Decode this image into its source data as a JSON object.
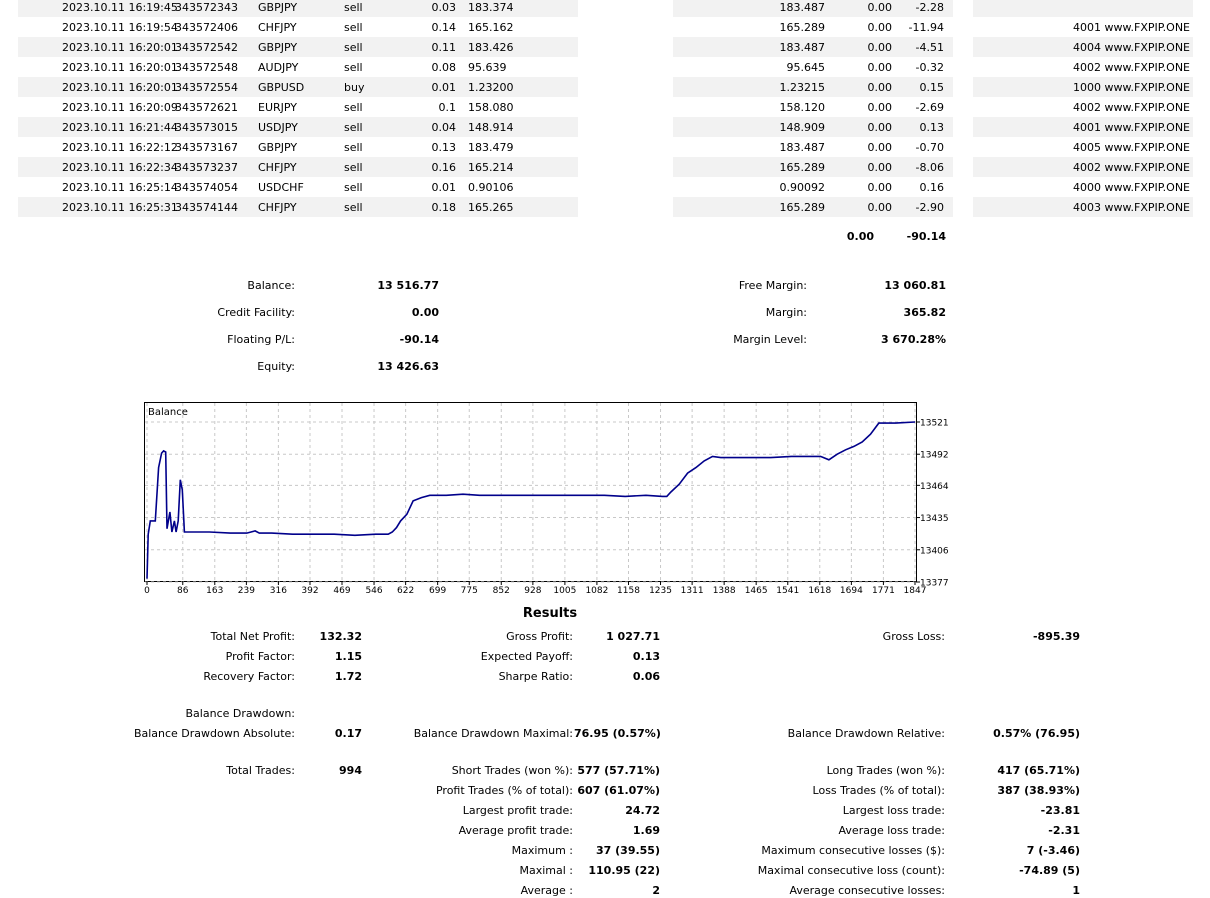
{
  "deals": [
    {
      "time": "2023.10.11 16:19:45",
      "ticket": "343572343",
      "symbol": "GBPJPY",
      "type": "sell",
      "volume": "0.03",
      "price": "183.374",
      "cur": "183.487",
      "swap": "0.00",
      "profit": "-2.28",
      "comment": ""
    },
    {
      "time": "2023.10.11 16:19:54",
      "ticket": "343572406",
      "symbol": "CHFJPY",
      "type": "sell",
      "volume": "0.14",
      "price": "165.162",
      "cur": "165.289",
      "swap": "0.00",
      "profit": "-11.94",
      "comment": "4001 www.FXPIP.ONE"
    },
    {
      "time": "2023.10.11 16:20:01",
      "ticket": "343572542",
      "symbol": "GBPJPY",
      "type": "sell",
      "volume": "0.11",
      "price": "183.426",
      "cur": "183.487",
      "swap": "0.00",
      "profit": "-4.51",
      "comment": "4004 www.FXPIP.ONE"
    },
    {
      "time": "2023.10.11 16:20:01",
      "ticket": "343572548",
      "symbol": "AUDJPY",
      "type": "sell",
      "volume": "0.08",
      "price": "95.639",
      "cur": "95.645",
      "swap": "0.00",
      "profit": "-0.32",
      "comment": "4002 www.FXPIP.ONE"
    },
    {
      "time": "2023.10.11 16:20:01",
      "ticket": "343572554",
      "symbol": "GBPUSD",
      "type": "buy",
      "volume": "0.01",
      "price": "1.23200",
      "cur": "1.23215",
      "swap": "0.00",
      "profit": "0.15",
      "comment": "1000 www.FXPIP.ONE"
    },
    {
      "time": "2023.10.11 16:20:09",
      "ticket": "343572621",
      "symbol": "EURJPY",
      "type": "sell",
      "volume": "0.1",
      "price": "158.080",
      "cur": "158.120",
      "swap": "0.00",
      "profit": "-2.69",
      "comment": "4002 www.FXPIP.ONE"
    },
    {
      "time": "2023.10.11 16:21:44",
      "ticket": "343573015",
      "symbol": "USDJPY",
      "type": "sell",
      "volume": "0.04",
      "price": "148.914",
      "cur": "148.909",
      "swap": "0.00",
      "profit": "0.13",
      "comment": "4001 www.FXPIP.ONE"
    },
    {
      "time": "2023.10.11 16:22:12",
      "ticket": "343573167",
      "symbol": "GBPJPY",
      "type": "sell",
      "volume": "0.13",
      "price": "183.479",
      "cur": "183.487",
      "swap": "0.00",
      "profit": "-0.70",
      "comment": "4005 www.FXPIP.ONE"
    },
    {
      "time": "2023.10.11 16:22:34",
      "ticket": "343573237",
      "symbol": "CHFJPY",
      "type": "sell",
      "volume": "0.16",
      "price": "165.214",
      "cur": "165.289",
      "swap": "0.00",
      "profit": "-8.06",
      "comment": "4002 www.FXPIP.ONE"
    },
    {
      "time": "2023.10.11 16:25:14",
      "ticket": "343574054",
      "symbol": "USDCHF",
      "type": "sell",
      "volume": "0.01",
      "price": "0.90106",
      "cur": "0.90092",
      "swap": "0.00",
      "profit": "0.16",
      "comment": "4000 www.FXPIP.ONE"
    },
    {
      "time": "2023.10.11 16:25:31",
      "ticket": "343574144",
      "symbol": "CHFJPY",
      "type": "sell",
      "volume": "0.18",
      "price": "165.265",
      "cur": "165.289",
      "swap": "0.00",
      "profit": "-2.90",
      "comment": "4003 www.FXPIP.ONE"
    }
  ],
  "totals": {
    "swap": "0.00",
    "profit": "-90.14"
  },
  "account": {
    "balance_label": "Balance:",
    "balance": "13 516.77",
    "credit_label": "Credit Facility:",
    "credit": "0.00",
    "floating_label": "Floating P/L:",
    "floating": "-90.14",
    "equity_label": "Equity:",
    "equity": "13 426.63",
    "free_margin_label": "Free Margin:",
    "free_margin": "13 060.81",
    "margin_label": "Margin:",
    "margin": "365.82",
    "margin_level_label": "Margin Level:",
    "margin_level": "3 670.28%"
  },
  "chart_data": {
    "type": "line",
    "title": "Balance",
    "x_ticks": [
      "0",
      "86",
      "163",
      "239",
      "316",
      "392",
      "469",
      "546",
      "622",
      "699",
      "775",
      "852",
      "928",
      "1005",
      "1082",
      "1158",
      "1235",
      "1311",
      "1388",
      "1465",
      "1541",
      "1618",
      "1694",
      "1771",
      "1847"
    ],
    "y_ticks": [
      "13521",
      "13492",
      "13464",
      "13435",
      "13406",
      "13377"
    ],
    "xlim": [
      0,
      1847
    ],
    "ylim": [
      13377,
      13521
    ],
    "grid": true,
    "series": [
      {
        "color": "#00008b",
        "points": [
          [
            0,
            13380
          ],
          [
            3,
            13420
          ],
          [
            8,
            13432
          ],
          [
            20,
            13432
          ],
          [
            28,
            13480
          ],
          [
            35,
            13493
          ],
          [
            40,
            13495
          ],
          [
            45,
            13494
          ],
          [
            48,
            13425
          ],
          [
            55,
            13440
          ],
          [
            60,
            13422
          ],
          [
            66,
            13432
          ],
          [
            70,
            13422
          ],
          [
            75,
            13432
          ],
          [
            80,
            13469
          ],
          [
            85,
            13460
          ],
          [
            90,
            13422
          ],
          [
            100,
            13422
          ],
          [
            150,
            13422
          ],
          [
            200,
            13421
          ],
          [
            240,
            13421
          ],
          [
            260,
            13423
          ],
          [
            270,
            13421
          ],
          [
            300,
            13421
          ],
          [
            350,
            13420
          ],
          [
            400,
            13420
          ],
          [
            450,
            13420
          ],
          [
            500,
            13419
          ],
          [
            550,
            13420
          ],
          [
            580,
            13420
          ],
          [
            590,
            13422
          ],
          [
            600,
            13426
          ],
          [
            610,
            13432
          ],
          [
            625,
            13438
          ],
          [
            640,
            13450
          ],
          [
            660,
            13453
          ],
          [
            680,
            13455
          ],
          [
            720,
            13455
          ],
          [
            760,
            13456
          ],
          [
            800,
            13455
          ],
          [
            850,
            13455
          ],
          [
            900,
            13455
          ],
          [
            950,
            13455
          ],
          [
            1000,
            13455
          ],
          [
            1050,
            13455
          ],
          [
            1100,
            13455
          ],
          [
            1150,
            13454
          ],
          [
            1200,
            13455
          ],
          [
            1240,
            13454
          ],
          [
            1250,
            13454
          ],
          [
            1260,
            13458
          ],
          [
            1280,
            13465
          ],
          [
            1300,
            13475
          ],
          [
            1320,
            13480
          ],
          [
            1340,
            13486
          ],
          [
            1360,
            13490
          ],
          [
            1380,
            13489
          ],
          [
            1400,
            13489
          ],
          [
            1450,
            13489
          ],
          [
            1500,
            13489
          ],
          [
            1550,
            13490
          ],
          [
            1600,
            13490
          ],
          [
            1620,
            13490
          ],
          [
            1640,
            13487
          ],
          [
            1660,
            13492
          ],
          [
            1680,
            13496
          ],
          [
            1700,
            13499
          ],
          [
            1720,
            13503
          ],
          [
            1740,
            13510
          ],
          [
            1760,
            13520
          ],
          [
            1800,
            13520
          ],
          [
            1847,
            13521
          ]
        ]
      }
    ]
  },
  "results": {
    "heading": "Results",
    "items": [
      {
        "label": "Total Net Profit:",
        "value": "132.32"
      },
      {
        "label": "Gross Profit:",
        "value": "1 027.71"
      },
      {
        "label": "Gross Loss:",
        "value": "-895.39"
      },
      {
        "label": "Profit Factor:",
        "value": "1.15"
      },
      {
        "label": "Expected Payoff:",
        "value": "0.13"
      },
      {
        "label": "Recovery Factor:",
        "value": "1.72"
      },
      {
        "label": "Sharpe Ratio:",
        "value": "0.06"
      },
      {
        "label": "Balance Drawdown:",
        "value": ""
      },
      {
        "label": "Balance Drawdown Absolute:",
        "value": "0.17"
      },
      {
        "label": "Balance Drawdown Maximal:",
        "value": "76.95 (0.57%)"
      },
      {
        "label": "Balance Drawdown Relative:",
        "value": "0.57% (76.95)"
      },
      {
        "label": "Total Trades:",
        "value": "994"
      },
      {
        "label": "Short Trades (won %):",
        "value": "577 (57.71%)"
      },
      {
        "label": "Long Trades (won %):",
        "value": "417 (65.71%)"
      },
      {
        "label": "Profit Trades (% of total):",
        "value": "607 (61.07%)"
      },
      {
        "label": "Loss Trades (% of total):",
        "value": "387 (38.93%)"
      },
      {
        "label": "Largest profit trade:",
        "value": "24.72"
      },
      {
        "label": "Largest loss trade:",
        "value": "-23.81"
      },
      {
        "label": "Average profit trade:",
        "value": "1.69"
      },
      {
        "label": "Average loss trade:",
        "value": "-2.31"
      },
      {
        "label": "Maximum :",
        "value": "37 (39.55)"
      },
      {
        "label": "Maximum consecutive losses ($):",
        "value": "7 (-3.46)"
      },
      {
        "label": "Maximal :",
        "value": "110.95 (22)"
      },
      {
        "label": "Maximal consecutive loss (count):",
        "value": "-74.89 (5)"
      },
      {
        "label": "Average :",
        "value": "2"
      },
      {
        "label": "Average consecutive losses:",
        "value": "1"
      }
    ]
  }
}
